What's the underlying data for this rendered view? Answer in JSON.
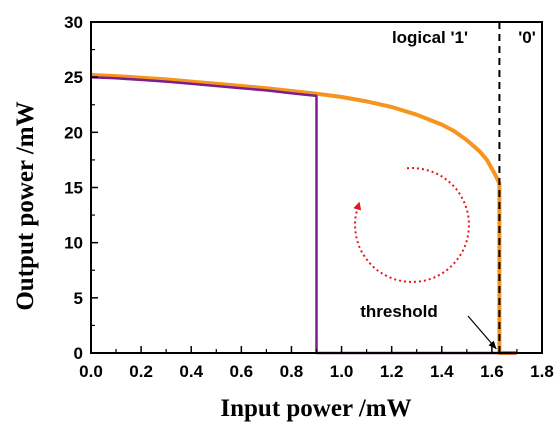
{
  "chart_data": {
    "type": "line",
    "xlabel": "Input power /mW",
    "ylabel": "Output power /mW",
    "xlim": [
      0.0,
      1.8
    ],
    "ylim": [
      0,
      30
    ],
    "xticks": [
      0.0,
      0.2,
      0.4,
      0.6,
      0.8,
      1.0,
      1.2,
      1.4,
      1.6,
      1.8
    ],
    "xtick_labels": [
      "0.0",
      "0.2",
      "0.4",
      "0.6",
      "0.8",
      "1.0",
      "1.2",
      "1.4",
      "1.6",
      "1.8"
    ],
    "yticks": [
      0,
      5,
      10,
      15,
      20,
      25,
      30
    ],
    "ytick_labels": [
      "0",
      "5",
      "10",
      "15",
      "20",
      "25",
      "30"
    ],
    "grid": false,
    "series": [
      {
        "color": "#f7941d",
        "x": [
          0.0,
          0.1,
          0.2,
          0.3,
          0.4,
          0.5,
          0.6,
          0.7,
          0.8,
          0.9,
          1.0,
          1.1,
          1.2,
          1.3,
          1.4,
          1.45,
          1.5,
          1.55,
          1.58,
          1.6,
          1.615,
          1.625,
          1.63,
          1.63,
          1.64,
          1.7
        ],
        "y": [
          25.2,
          25.1,
          24.95,
          24.8,
          24.6,
          24.4,
          24.2,
          24.0,
          23.75,
          23.5,
          23.2,
          22.8,
          22.3,
          21.6,
          20.7,
          20.1,
          19.3,
          18.3,
          17.5,
          16.7,
          16.1,
          15.6,
          15.4,
          0,
          0,
          0
        ]
      },
      {
        "color": "#7b1f8f",
        "x": [
          0.0,
          0.1,
          0.2,
          0.3,
          0.4,
          0.5,
          0.6,
          0.7,
          0.8,
          0.9,
          0.9,
          1.0,
          1.2,
          1.4,
          1.6,
          1.7
        ],
        "y": [
          25.0,
          24.9,
          24.75,
          24.6,
          24.4,
          24.2,
          24.0,
          23.8,
          23.55,
          23.3,
          0,
          0,
          0,
          0,
          0,
          0
        ]
      }
    ],
    "threshold_x": 1.63,
    "annotations": {
      "region_one": "logical '1'",
      "region_zero": "'0'",
      "threshold": "threshold"
    },
    "hysteresis_arrow_color": "#e8151b"
  }
}
